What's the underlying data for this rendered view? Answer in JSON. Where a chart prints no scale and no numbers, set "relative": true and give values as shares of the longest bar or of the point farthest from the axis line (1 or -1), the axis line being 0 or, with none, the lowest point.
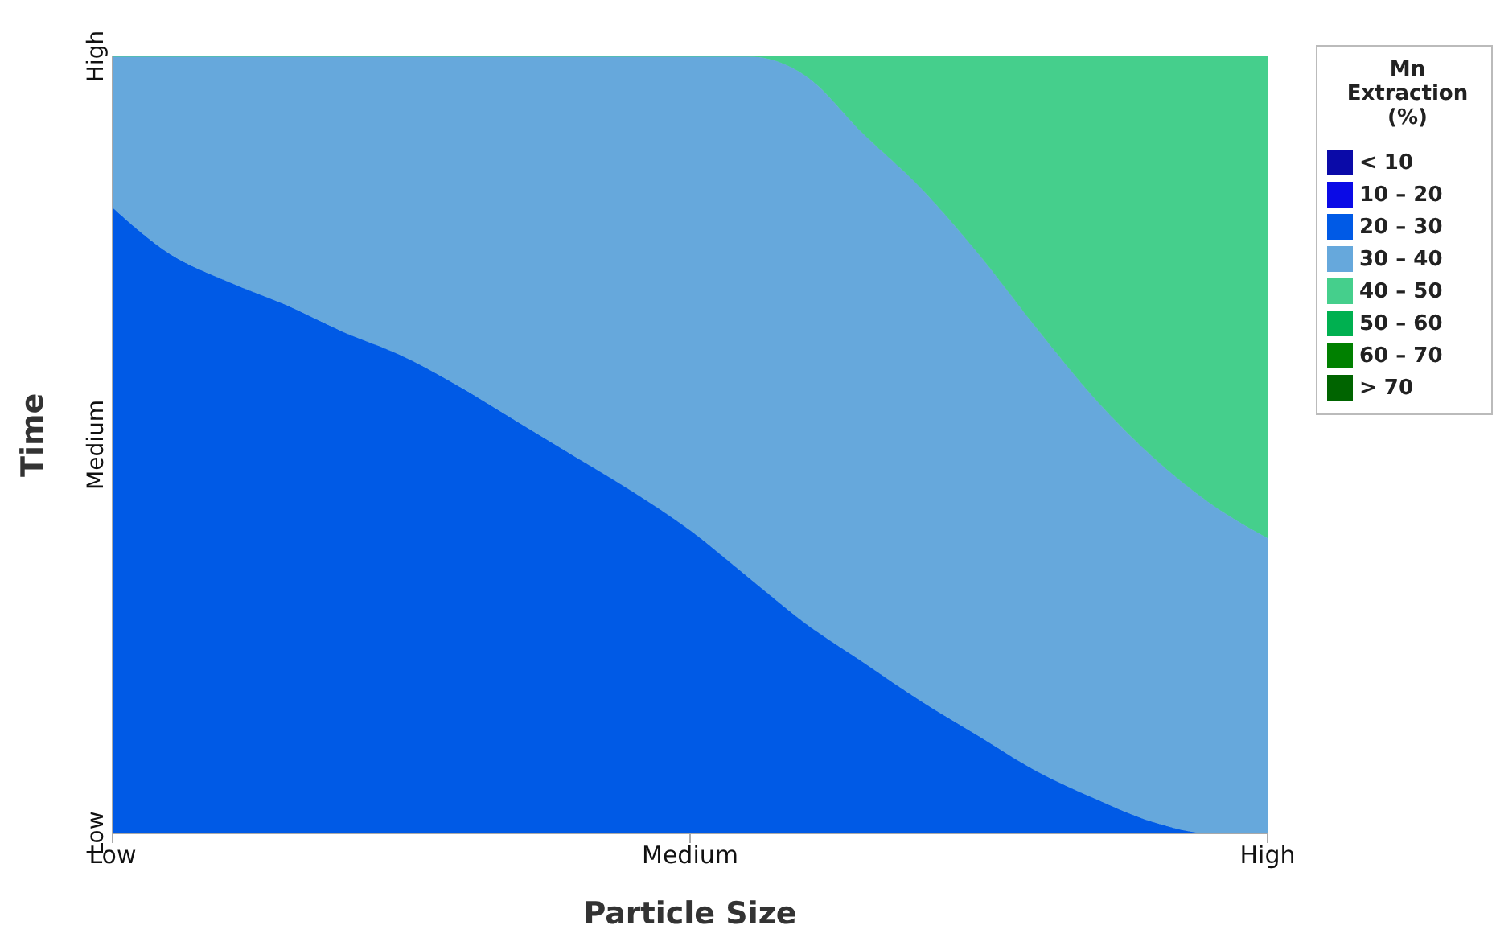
{
  "chart_data": {
    "type": "area",
    "stacked": true,
    "relative": true,
    "xlabel": "Particle Size",
    "ylabel": "Time",
    "legend_title": "Mn Extraction (%)",
    "legend": "right",
    "annotations": [
      "Low",
      "Medium",
      "High"
    ],
    "categories": [
      "Low",
      null,
      null,
      null,
      null,
      null,
      null,
      null,
      null,
      null,
      "Medium",
      null,
      null,
      null,
      null,
      null,
      null,
      null,
      null,
      null,
      "High"
    ],
    "series": [
      {
        "name": "< 10",
        "color": "#0a0aa8",
        "values": [
          null,
          null,
          null,
          null,
          null,
          null,
          null,
          null,
          null,
          null,
          null,
          null,
          null,
          null,
          null,
          null,
          null,
          null,
          null,
          null,
          null
        ]
      },
      {
        "name": "10 – 20",
        "color": "#0a0ae6",
        "values": [
          null,
          null,
          null,
          null,
          null,
          null,
          null,
          null,
          null,
          null,
          null,
          null,
          null,
          null,
          null,
          null,
          null,
          null,
          null,
          null,
          null
        ]
      },
      {
        "name": "20 – 30",
        "color": "#005ae6",
        "values": [
          0.805,
          0.745,
          0.71,
          0.68,
          0.645,
          0.615,
          0.575,
          0.53,
          0.485,
          0.44,
          0.39,
          0.33,
          0.27,
          0.22,
          0.17,
          0.125,
          0.08,
          0.045,
          0.015,
          0,
          0
        ]
      },
      {
        "name": "30 – 40",
        "color": "#66a8dc",
        "values": [
          0.195,
          0.255,
          0.29,
          0.32,
          0.355,
          0.385,
          0.425,
          0.47,
          0.515,
          0.56,
          0.61,
          0.67,
          0.705,
          0.68,
          0.66,
          0.62,
          0.57,
          0.515,
          0.47,
          0.425,
          0.38
        ]
      },
      {
        "name": "40 – 50",
        "color": "#45cf8c",
        "values": [
          0,
          0,
          0,
          0,
          0,
          0,
          0,
          0,
          0,
          0,
          0,
          0,
          0.025,
          0.1,
          0.17,
          0.255,
          0.35,
          0.44,
          0.515,
          0.575,
          0.62
        ]
      },
      {
        "name": "50 – 60",
        "color": "#00b050",
        "values": [
          null,
          null,
          null,
          null,
          null,
          null,
          null,
          null,
          null,
          null,
          null,
          null,
          null,
          null,
          null,
          null,
          null,
          null,
          null,
          null,
          null
        ]
      },
      {
        "name": "60 – 70",
        "color": "#008000",
        "values": [
          null,
          null,
          null,
          null,
          null,
          null,
          null,
          null,
          null,
          null,
          null,
          null,
          null,
          null,
          null,
          null,
          null,
          null,
          null,
          null,
          null
        ]
      },
      {
        "name": "> 70",
        "color": "#006400",
        "values": [
          null,
          null,
          null,
          null,
          null,
          null,
          null,
          null,
          null,
          null,
          null,
          null,
          null,
          null,
          null,
          null,
          null,
          null,
          null,
          null,
          null
        ]
      }
    ]
  }
}
